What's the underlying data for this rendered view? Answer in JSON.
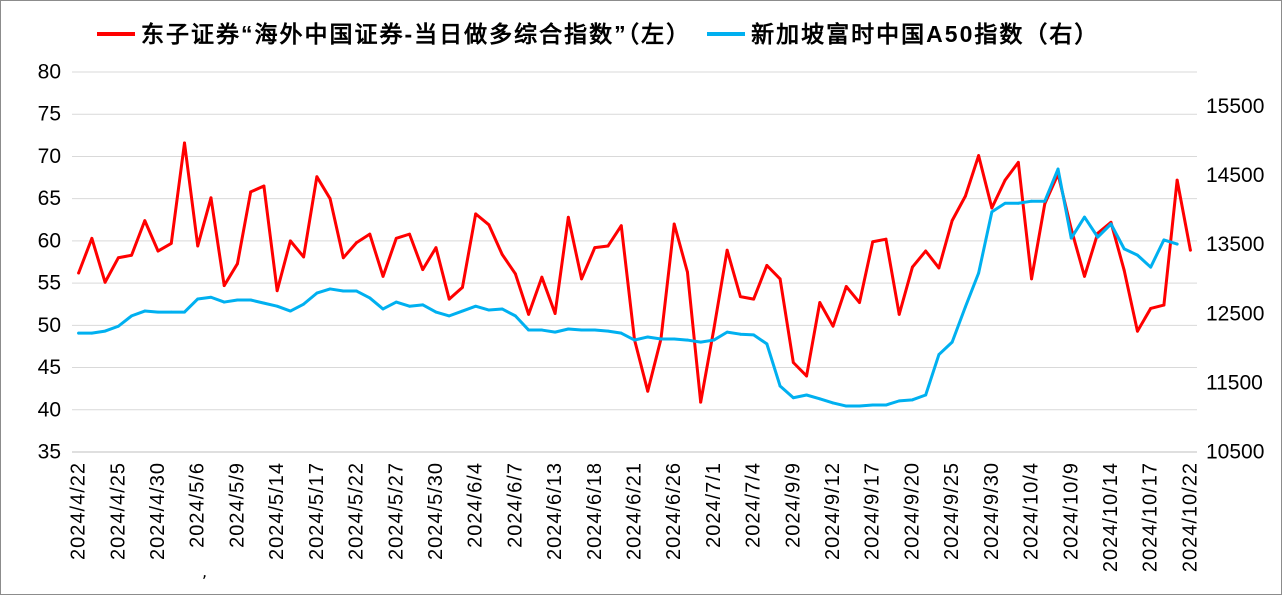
{
  "chart_data": {
    "type": "line",
    "categories": [
      "2024/4/22",
      "",
      "",
      "2024/4/25",
      "",
      "",
      "2024/4/30",
      "",
      "",
      "2024/5/6",
      "",
      "",
      "2024/5/9",
      "",
      "",
      "2024/5/14",
      "",
      "",
      "2024/5/17",
      "",
      "",
      "2024/5/22",
      "",
      "",
      "2024/5/27",
      "",
      "",
      "2024/5/30",
      "",
      "",
      "2024/6/4",
      "",
      "",
      "2024/6/7",
      "",
      "",
      "2024/6/13",
      "",
      "",
      "2024/6/18",
      "",
      "",
      "2024/6/21",
      "",
      "",
      "2024/6/26",
      "",
      "",
      "2024/7/1",
      "",
      "",
      "2024/7/4",
      "",
      "",
      "2024/9/9",
      "",
      "",
      "2024/9/12",
      "",
      "",
      "2024/9/17",
      "",
      "",
      "2024/9/20",
      "",
      "",
      "2024/9/25",
      "",
      "",
      "2024/9/30",
      "",
      "",
      "2024/10/4",
      "",
      "",
      "2024/10/9",
      "",
      "",
      "2024/10/14",
      "",
      "",
      "2024/10/17",
      "",
      "",
      "2024/10/22"
    ],
    "series": [
      {
        "name": "东子证券“海外中国证券-当日做多综合指数”（左）",
        "axis": "left",
        "color": "#ff0000",
        "values": [
          56.2,
          60.3,
          55.1,
          58.0,
          58.3,
          62.4,
          58.8,
          59.7,
          71.6,
          59.4,
          65.1,
          54.7,
          57.3,
          65.8,
          66.5,
          54.1,
          60.0,
          58.1,
          67.6,
          65.0,
          58.0,
          59.8,
          60.8,
          55.8,
          60.3,
          60.8,
          56.6,
          59.2,
          53.1,
          54.5,
          63.2,
          61.9,
          58.4,
          56.1,
          51.3,
          55.7,
          51.4,
          62.8,
          55.5,
          59.2,
          59.4,
          61.8,
          48.3,
          42.2,
          48.4,
          62.0,
          56.3,
          40.9,
          49.6,
          58.9,
          53.4,
          53.1,
          57.1,
          55.5,
          45.6,
          44.0,
          52.7,
          49.9,
          54.6,
          52.7,
          59.9,
          60.2,
          51.3,
          56.9,
          58.8,
          56.8,
          62.4,
          65.3,
          70.1,
          63.9,
          67.2,
          69.3,
          55.5,
          64.4,
          67.9,
          61.4,
          55.8,
          60.9,
          62.2,
          56.5,
          49.3,
          52.0,
          52.4,
          67.2,
          58.9
        ]
      },
      {
        "name": "新加坡富时中国A50指数（右）",
        "axis": "right",
        "color": "#00b0f0",
        "values": [
          12220,
          12220,
          12250,
          12320,
          12470,
          12540,
          12525,
          12525,
          12525,
          12715,
          12740,
          12670,
          12700,
          12700,
          12655,
          12610,
          12540,
          12640,
          12800,
          12860,
          12830,
          12830,
          12730,
          12570,
          12670,
          12610,
          12630,
          12525,
          12470,
          12540,
          12610,
          12555,
          12570,
          12470,
          12265,
          12265,
          12235,
          12280,
          12265,
          12265,
          12250,
          12220,
          12120,
          12165,
          12135,
          12135,
          12120,
          12090,
          12120,
          12235,
          12205,
          12195,
          12065,
          11455,
          11285,
          11325,
          11270,
          11210,
          11165,
          11165,
          11180,
          11180,
          11240,
          11255,
          11325,
          11910,
          12090,
          12600,
          13090,
          13975,
          14100,
          14100,
          14130,
          14130,
          14595,
          13595,
          13900,
          13610,
          13800,
          13440,
          13350,
          13175,
          13570,
          13510,
          null
        ]
      }
    ],
    "y_left": {
      "min": 35,
      "max": 80,
      "ticks": [
        80,
        75,
        70,
        65,
        60,
        55,
        50,
        45,
        40,
        35
      ]
    },
    "y_right": {
      "min": 10500,
      "max": 16000,
      "ticks": [
        15500,
        14500,
        13500,
        12500,
        11500,
        10500
      ]
    },
    "grid": "horizontal",
    "legend_position": "top"
  },
  "stray_mark": ","
}
